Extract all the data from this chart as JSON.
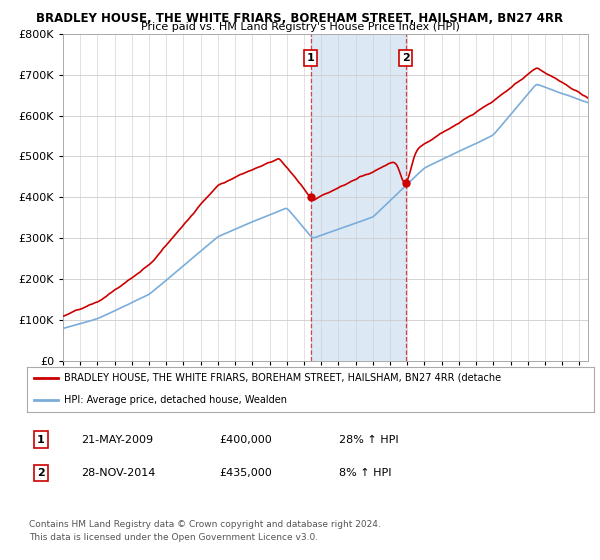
{
  "title1": "BRADLEY HOUSE, THE WHITE FRIARS, BOREHAM STREET, HAILSHAM, BN27 4RR",
  "title2": "Price paid vs. HM Land Registry's House Price Index (HPI)",
  "ylim": [
    0,
    800000
  ],
  "xlim_start": 1995.0,
  "xlim_end": 2025.5,
  "sale1_year": 2009.38,
  "sale1_price": 400000,
  "sale1_label": "1",
  "sale1_hpi_pct": "28% ↑ HPI",
  "sale1_date": "21-MAY-2009",
  "sale2_year": 2014.91,
  "sale2_price": 435000,
  "sale2_label": "2",
  "sale2_hpi_pct": "8% ↑ HPI",
  "sale2_date": "28-NOV-2014",
  "red_color": "#cc0000",
  "blue_color": "#7aadda",
  "shade_color": "#dce9f5",
  "legend_line1": "BRADLEY HOUSE, THE WHITE FRIARS, BOREHAM STREET, HAILSHAM, BN27 4RR (detache",
  "legend_line2": "HPI: Average price, detached house, Wealden",
  "footer1": "Contains HM Land Registry data © Crown copyright and database right 2024.",
  "footer2": "This data is licensed under the Open Government Licence v3.0.",
  "bg_color": "#ffffff",
  "grid_color": "#cccccc"
}
